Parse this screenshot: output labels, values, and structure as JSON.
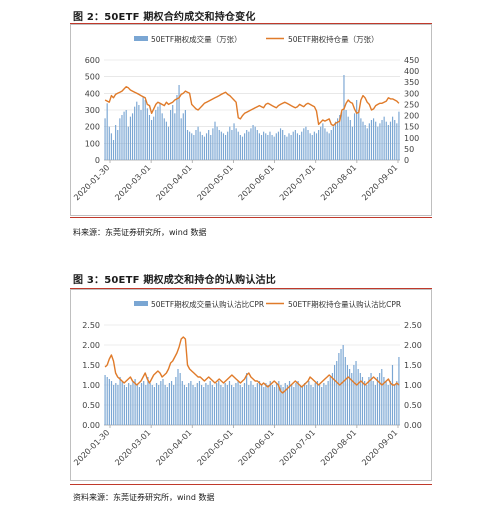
{
  "figures": [
    {
      "caption": "图 2：50ETF 期权合约成交和持仓变化",
      "source": "料来源：东莞证券研究所，wind 数据",
      "legend": [
        "50ETF期权成交量（万张）",
        "50ETF期权持仓量（万张）"
      ]
    },
    {
      "caption": "图 3：50ETF 期权成交和持仓的认购认沽比",
      "source": "资料来源：东莞证券研究所，wind 数据",
      "legend": [
        "50ETF期权成交量认购认沽比CPR",
        "50ETF期权持仓量认购认沽比CPR"
      ]
    }
  ],
  "colors": {
    "bar": "#7aa6d3",
    "line": "#e07b2a",
    "rule": "#c0392b",
    "grid": "#d9d9d9"
  },
  "chart_data": [
    {
      "type": "bar+line",
      "x_ticks": [
        "2020-01-30",
        "2020-03-01",
        "2020-04-01",
        "2020-05-01",
        "2020-06-01",
        "2020-07-01",
        "2020-08-01",
        "2020-09-01"
      ],
      "y_left": {
        "ylim": [
          0,
          600
        ],
        "ticks": [
          "0",
          "100",
          "200",
          "300",
          "400",
          "500",
          "600"
        ]
      },
      "y_right": {
        "ylim": [
          0,
          450
        ],
        "ticks": [
          "0",
          "50",
          "100",
          "150",
          "200",
          "250",
          "300",
          "350",
          "400",
          "450"
        ]
      },
      "series": [
        {
          "name": "50ETF期权成交量（万张）",
          "type": "bar",
          "axis": "left",
          "values": [
            250,
            340,
            200,
            160,
            120,
            210,
            180,
            250,
            270,
            290,
            300,
            200,
            260,
            280,
            320,
            350,
            330,
            300,
            380,
            360,
            310,
            270,
            240,
            260,
            300,
            320,
            340,
            280,
            250,
            230,
            200,
            300,
            330,
            280,
            390,
            450,
            250,
            280,
            300,
            180,
            170,
            160,
            150,
            180,
            200,
            170,
            150,
            140,
            160,
            180,
            150,
            190,
            230,
            200,
            180,
            170,
            160,
            150,
            170,
            200,
            180,
            220,
            190,
            170,
            150,
            140,
            160,
            180,
            170,
            190,
            210,
            200,
            180,
            160,
            150,
            170,
            160,
            150,
            170,
            150,
            140,
            160,
            170,
            190,
            180,
            150,
            140,
            160,
            150,
            170,
            180,
            160,
            150,
            170,
            190,
            200,
            180,
            160,
            150,
            170,
            160,
            180,
            200,
            220,
            190,
            170,
            160,
            180,
            200,
            230,
            250,
            270,
            290,
            510,
            300,
            260,
            240,
            200,
            280,
            360,
            300,
            250,
            230,
            210,
            190,
            220,
            240,
            250,
            230,
            200,
            220,
            240,
            260,
            230,
            210,
            230,
            260,
            240,
            220,
            290
          ]
        },
        {
          "name": "50ETF期权持仓量（万张）",
          "type": "line",
          "axis": "right",
          "values": [
            270,
            265,
            260,
            290,
            280,
            295,
            300,
            305,
            310,
            320,
            330,
            325,
            315,
            310,
            305,
            300,
            295,
            290,
            285,
            280,
            250,
            245,
            210,
            230,
            250,
            260,
            255,
            250,
            245,
            260,
            250,
            255,
            260,
            270,
            275,
            280,
            295,
            300,
            310,
            305,
            300,
            250,
            240,
            230,
            225,
            235,
            245,
            255,
            260,
            265,
            270,
            275,
            280,
            285,
            290,
            295,
            300,
            305,
            295,
            290,
            280,
            270,
            260,
            190,
            185,
            200,
            210,
            215,
            220,
            225,
            230,
            235,
            240,
            245,
            240,
            235,
            250,
            255,
            250,
            245,
            240,
            235,
            245,
            250,
            255,
            260,
            255,
            250,
            245,
            240,
            235,
            240,
            250,
            245,
            240,
            250,
            255,
            250,
            245,
            240,
            220,
            160,
            170,
            180,
            175,
            180,
            185,
            160,
            155,
            165,
            170,
            175,
            225,
            230,
            255,
            270,
            260,
            255,
            230,
            210,
            215,
            270,
            290,
            280,
            260,
            250,
            225,
            230,
            245,
            250,
            255,
            255,
            260,
            265,
            280,
            275,
            275,
            270,
            265,
            255
          ]
        }
      ]
    },
    {
      "type": "bar+line",
      "x_ticks": [
        "2020-01-30",
        "2020-03-01",
        "2020-04-01",
        "2020-05-01",
        "2020-06-01",
        "2020-07-01",
        "2020-08-01",
        "2020-09-01"
      ],
      "y_left": {
        "ylim": [
          0,
          2.5
        ],
        "ticks": [
          "0.00",
          "0.50",
          "1.00",
          "1.50",
          "2.00",
          "2.50"
        ]
      },
      "y_right": {
        "ylim": [
          0,
          2.5
        ],
        "ticks": [
          "0.00",
          "0.50",
          "1.00",
          "1.50",
          "2.00",
          "2.50"
        ]
      },
      "series": [
        {
          "name": "50ETF期权成交量认购认沽比CPR",
          "type": "bar",
          "axis": "left",
          "values": [
            1.25,
            1.2,
            1.15,
            1.1,
            1.0,
            1.05,
            1.0,
            1.2,
            1.1,
            1.0,
            0.95,
            1.05,
            1.0,
            1.1,
            1.15,
            1.0,
            0.95,
            1.05,
            1.1,
            1.0,
            1.2,
            1.05,
            1.0,
            0.95,
            1.05,
            1.0,
            1.1,
            1.15,
            1.0,
            0.95,
            1.05,
            1.1,
            1.0,
            1.2,
            1.4,
            1.3,
            1.1,
            1.0,
            0.95,
            1.05,
            1.1,
            1.0,
            0.95,
            1.05,
            1.1,
            1.0,
            0.95,
            1.05,
            1.0,
            1.1,
            1.0,
            0.95,
            1.05,
            1.1,
            1.0,
            0.95,
            1.05,
            1.0,
            1.1,
            1.0,
            0.95,
            1.05,
            1.1,
            1.0,
            0.95,
            1.05,
            1.3,
            1.0,
            1.1,
            1.0,
            0.95,
            1.05,
            1.1,
            1.0,
            0.95,
            1.05,
            1.0,
            1.1,
            1.0,
            0.95,
            1.05,
            1.1,
            1.0,
            0.95,
            1.05,
            1.0,
            1.1,
            1.0,
            0.95,
            1.05,
            1.1,
            1.0,
            0.95,
            1.05,
            1.0,
            1.1,
            1.0,
            0.95,
            1.05,
            1.1,
            1.0,
            0.95,
            1.05,
            1.0,
            1.1,
            1.2,
            1.3,
            1.5,
            1.6,
            1.8,
            1.9,
            2.0,
            1.7,
            1.5,
            1.4,
            1.3,
            1.5,
            1.6,
            1.4,
            1.3,
            1.2,
            1.1,
            1.0,
            1.2,
            1.3,
            1.1,
            1.0,
            1.2,
            1.3,
            1.4,
            1.2,
            1.1,
            1.0,
            1.1,
            1.5,
            1.0,
            1.1,
            1.7
          ]
        },
        {
          "name": "50ETF期权持仓量认购认沽比CPR",
          "type": "line",
          "axis": "right",
          "values": [
            1.45,
            1.5,
            1.65,
            1.75,
            1.6,
            1.3,
            1.2,
            1.15,
            1.1,
            1.05,
            1.1,
            1.15,
            1.2,
            1.1,
            1.05,
            1.0,
            1.05,
            1.1,
            1.2,
            1.3,
            1.15,
            1.05,
            1.15,
            1.25,
            1.3,
            1.35,
            1.3,
            1.2,
            1.25,
            1.3,
            1.4,
            1.55,
            1.6,
            1.7,
            1.8,
            1.95,
            2.15,
            2.2,
            2.15,
            1.5,
            1.4,
            1.35,
            1.3,
            1.25,
            1.2,
            1.2,
            1.15,
            1.1,
            1.15,
            1.2,
            1.15,
            1.1,
            1.05,
            1.1,
            1.15,
            1.1,
            1.05,
            1.1,
            1.15,
            1.2,
            1.25,
            1.2,
            1.15,
            1.1,
            1.05,
            1.1,
            1.15,
            1.25,
            1.3,
            1.2,
            1.15,
            1.1,
            1.1,
            1.05,
            1.0,
            1.05,
            1.0,
            0.95,
            1.0,
            1.05,
            1.1,
            1.05,
            1.0,
            0.85,
            0.8,
            0.85,
            0.9,
            0.95,
            1.0,
            1.05,
            1.1,
            1.05,
            1.0,
            0.95,
            1.0,
            1.05,
            1.1,
            1.2,
            1.15,
            1.1,
            1.05,
            1.0,
            1.05,
            1.1,
            1.15,
            1.2,
            1.25,
            1.2,
            1.15,
            1.1,
            1.05,
            1.0,
            1.05,
            1.1,
            1.15,
            1.2,
            1.15,
            1.1,
            1.05,
            1.0,
            1.05,
            1.1,
            1.05,
            1.0,
            1.05,
            1.1,
            1.15,
            1.2,
            1.15,
            1.1,
            1.05,
            1.0,
            1.05,
            1.1,
            1.15,
            1.05,
            1.0,
            1.0,
            1.05,
            1.0
          ]
        }
      ]
    }
  ]
}
